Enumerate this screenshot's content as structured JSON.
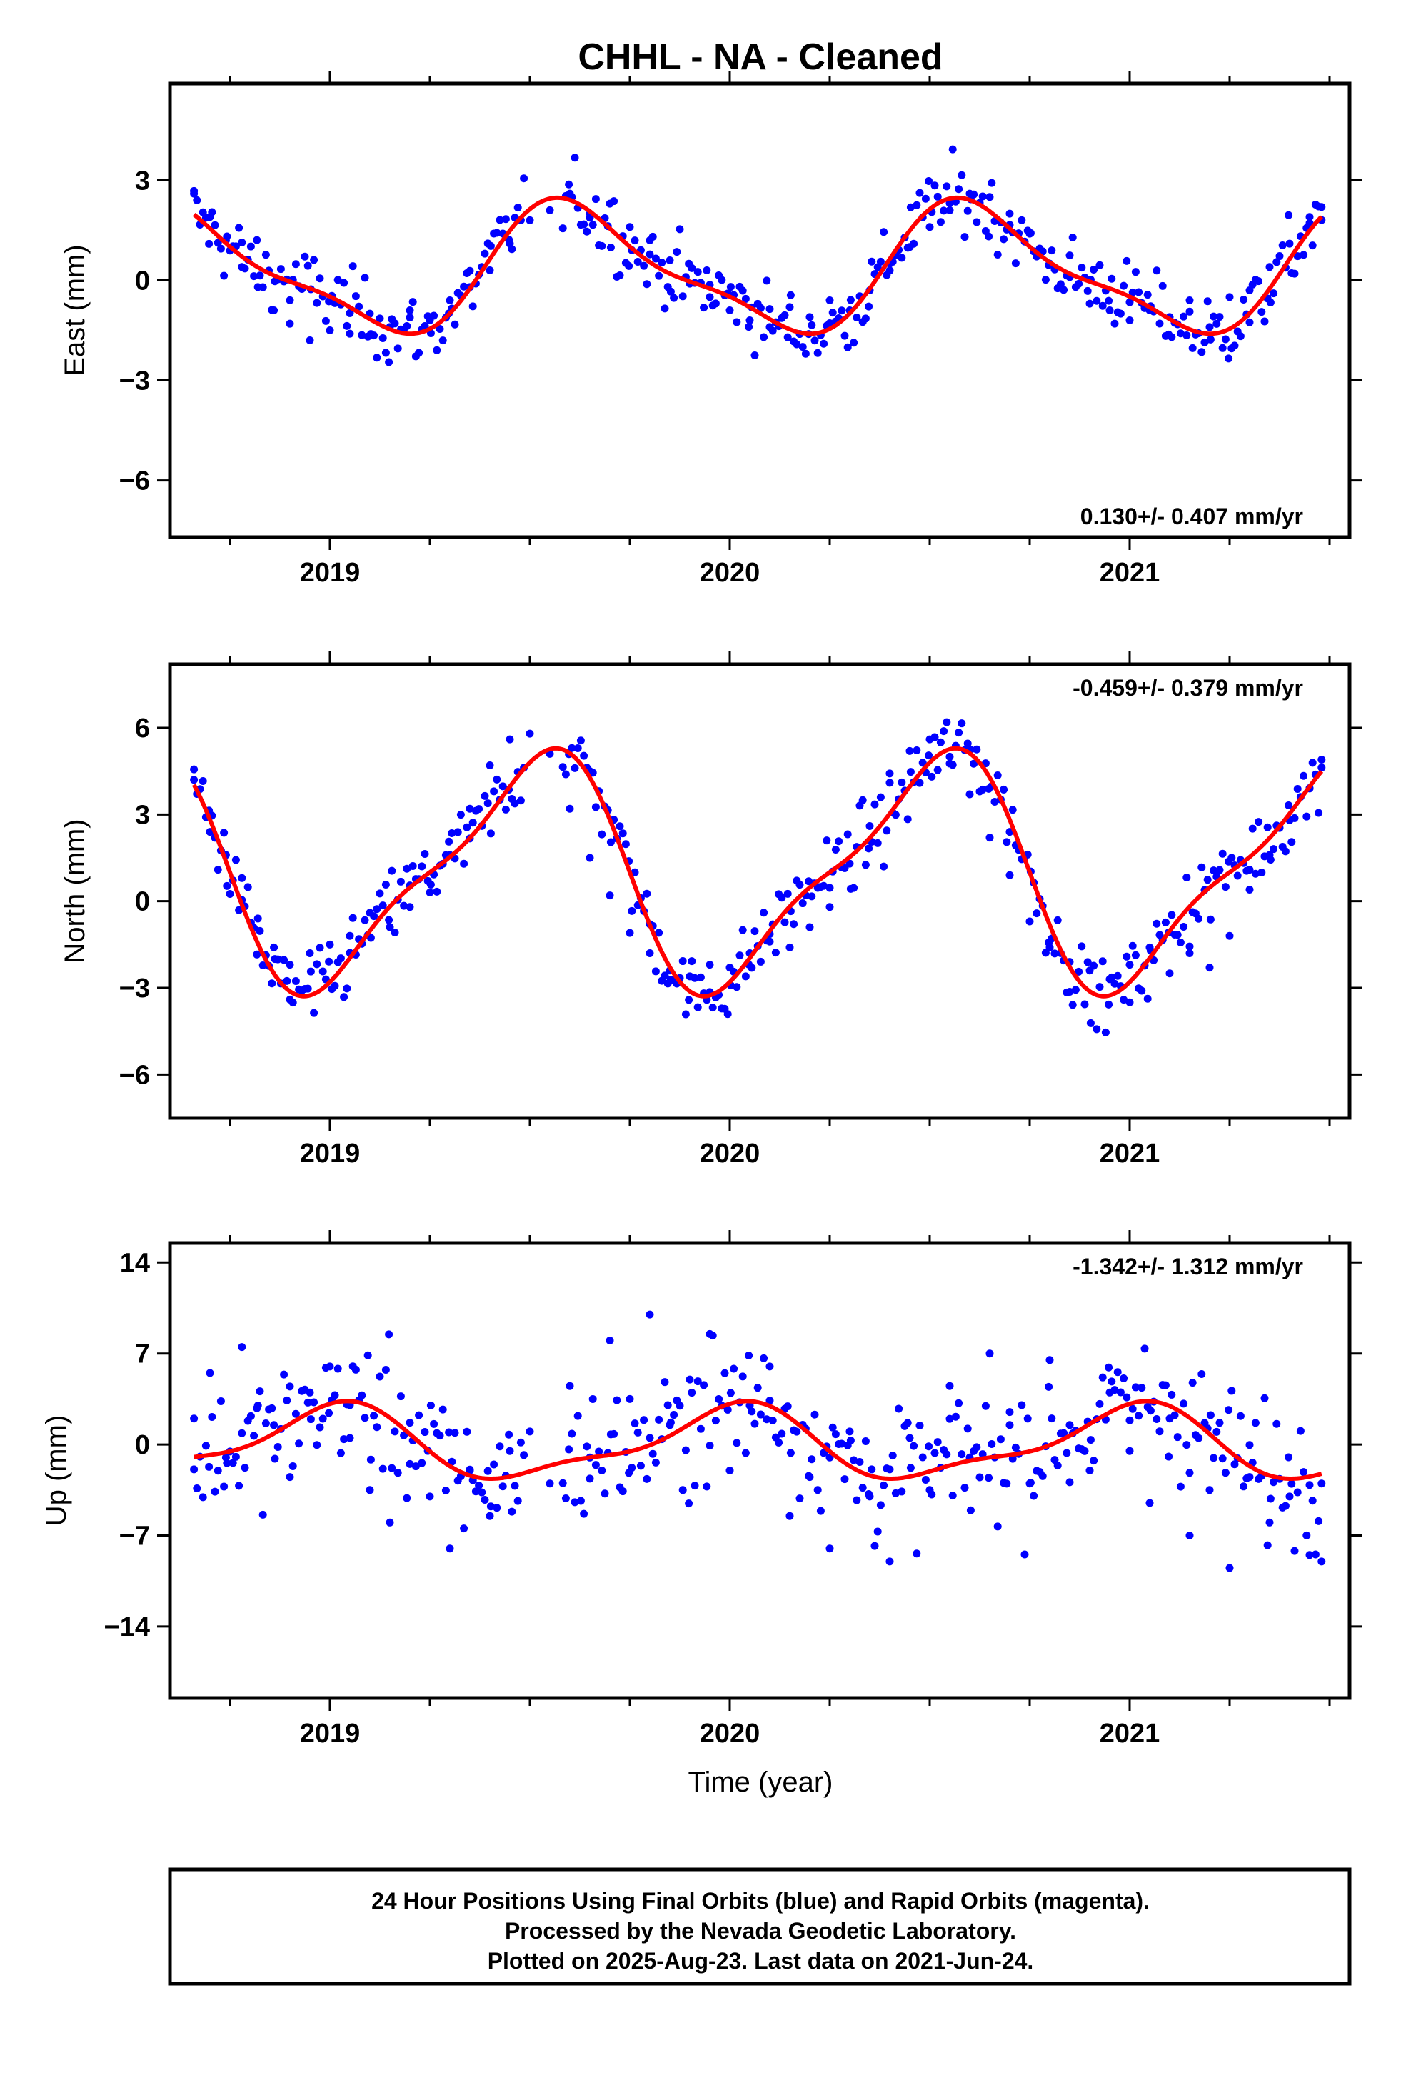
{
  "title": "CHHL  - NA - Cleaned",
  "xlabel": "Time (year)",
  "footer": [
    "24 Hour Positions Using Final Orbits (blue) and Rapid Orbits (magenta).",
    "Processed by the Nevada Geodetic Laboratory.",
    "Plotted on 2025-Aug-23. Last data on 2021-Jun-24."
  ],
  "colors": {
    "points": "#0000ff",
    "fit": "#ff0000",
    "axis": "#000000"
  },
  "chart_data": [
    {
      "type": "scatter",
      "panel": "east",
      "ylabel": "East (mm)",
      "rate_text": "0.130+/- 0.407 mm/yr",
      "rate_position": "bottom-right",
      "xlim": [
        2018.6,
        2021.55
      ],
      "ylim": [
        -7.7,
        5.9
      ],
      "xticks": [
        2019,
        2020,
        2021
      ],
      "xtick_labels": [
        "2019",
        "2020",
        "2021"
      ],
      "yticks": [
        3,
        0,
        -3,
        -6
      ],
      "ytick_labels": [
        "3",
        "0",
        "−3",
        "−6"
      ],
      "fit": {
        "mean": 0.3,
        "annual_amp": 1.8,
        "annual_phase": 2019.37,
        "semi_amp": 0.55,
        "semi_phase": 2018.9
      },
      "series": [
        {
          "style": "points",
          "x": [
            2018.66,
            2018.7,
            2018.74,
            2018.78,
            2018.82,
            2018.86,
            2018.9,
            2018.95,
            2019.0,
            2019.05,
            2019.1,
            2019.15,
            2019.2,
            2019.25,
            2019.3,
            2019.35,
            2019.4,
            2019.45,
            2019.5,
            2019.55,
            2019.6,
            2019.65,
            2019.7,
            2019.75,
            2019.8,
            2019.85,
            2019.9,
            2019.95,
            2020.0,
            2020.05,
            2020.1,
            2020.15,
            2020.2,
            2020.25,
            2020.3,
            2020.35,
            2020.4,
            2020.45,
            2020.5,
            2020.55,
            2020.6,
            2020.65,
            2020.7,
            2020.75,
            2020.8,
            2020.85,
            2020.9,
            2020.95,
            2021.0,
            2021.05,
            2021.1,
            2021.15,
            2021.2,
            2021.25,
            2021.3,
            2021.35,
            2021.4,
            2021.45,
            2021.48
          ],
          "y": [
            2.6,
            1.9,
            1.2,
            0.4,
            -0.2,
            -0.9,
            -1.3,
            -1.8,
            -1.5,
            -1.6,
            -1.0,
            -1.4,
            -0.9,
            -1.2,
            -0.6,
            -0.2,
            0.3,
            1.1,
            1.8,
            2.1,
            2.6,
            2.0,
            2.3,
            1.6,
            1.2,
            0.6,
            -0.1,
            -0.5,
            -0.9,
            -1.2,
            -1.4,
            -0.8,
            -1.1,
            -0.6,
            -0.9,
            -0.3,
            0.5,
            1.0,
            1.6,
            2.1,
            2.6,
            2.5,
            2.0,
            1.4,
            0.5,
            0.1,
            -0.7,
            -0.9,
            -1.2,
            -0.9,
            -1.1,
            -0.6,
            -1.4,
            -0.5,
            -0.3,
            0.4,
            1.1,
            1.9,
            2.2
          ]
        },
        {
          "style": "fit",
          "name": "",
          "values": []
        }
      ]
    },
    {
      "type": "scatter",
      "panel": "north",
      "ylabel": "North (mm)",
      "rate_text": "-0.459+/- 0.379 mm/yr",
      "rate_position": "top-right",
      "xlim": [
        2018.6,
        2021.55
      ],
      "ylim": [
        -7.5,
        8.2
      ],
      "xticks": [
        2019,
        2020,
        2021
      ],
      "xtick_labels": [
        "2019",
        "2020",
        "2021"
      ],
      "yticks": [
        6,
        3,
        0,
        -3,
        -6
      ],
      "ytick_labels": [
        "6",
        "3",
        "0",
        "−3",
        "−6"
      ],
      "fit": {
        "mean": 1.0,
        "annual_amp": 3.8,
        "annual_phase": 2019.25,
        "semi_amp": 1.1,
        "semi_phase": 2019.0
      },
      "series": [
        {
          "style": "points",
          "x": [
            2018.66,
            2018.7,
            2018.74,
            2018.78,
            2018.82,
            2018.86,
            2018.9,
            2018.95,
            2019.0,
            2019.05,
            2019.1,
            2019.15,
            2019.2,
            2019.25,
            2019.3,
            2019.35,
            2019.4,
            2019.45,
            2019.5,
            2019.55,
            2019.6,
            2019.65,
            2019.7,
            2019.75,
            2019.8,
            2019.85,
            2019.9,
            2019.95,
            2020.0,
            2020.05,
            2020.1,
            2020.15,
            2020.2,
            2020.25,
            2020.3,
            2020.35,
            2020.4,
            2020.45,
            2020.5,
            2020.55,
            2020.6,
            2020.65,
            2020.7,
            2020.75,
            2020.8,
            2020.85,
            2020.9,
            2020.95,
            2021.0,
            2021.05,
            2021.1,
            2021.15,
            2021.2,
            2021.25,
            2021.3,
            2021.35,
            2021.4,
            2021.45,
            2021.48
          ],
          "y": [
            4.2,
            2.4,
            1.6,
            0.8,
            -0.6,
            -1.6,
            -2.2,
            -1.8,
            -1.5,
            -1.2,
            -0.4,
            -0.9,
            -0.2,
            0.3,
            1.6,
            3.2,
            4.7,
            5.6,
            5.8,
            5.1,
            3.2,
            1.5,
            0.2,
            -1.1,
            -1.8,
            -2.4,
            -2.6,
            -2.2,
            -2.3,
            -1.8,
            -1.4,
            -1.6,
            -0.9,
            -0.2,
            1.3,
            2.6,
            4.1,
            5.2,
            5.6,
            5.0,
            3.7,
            2.2,
            0.9,
            -0.7,
            -1.6,
            -2.1,
            -2.4,
            -2.7,
            -2.2,
            -1.6,
            -2.5,
            -1.8,
            -2.3,
            -1.2,
            0.4,
            1.6,
            2.8,
            3.9,
            4.9
          ]
        },
        {
          "style": "fit",
          "name": "",
          "values": []
        }
      ]
    },
    {
      "type": "scatter",
      "panel": "up",
      "ylabel": "Up (mm)",
      "rate_text": "-1.342+/- 1.312 mm/yr",
      "rate_position": "top-right",
      "xlim": [
        2018.6,
        2021.55
      ],
      "ylim": [
        -19.5,
        15.5
      ],
      "xticks": [
        2019,
        2020,
        2021
      ],
      "xtick_labels": [
        "2019",
        "2020",
        "2021"
      ],
      "yticks": [
        14,
        7,
        0,
        -7,
        -14
      ],
      "ytick_labels": [
        "14",
        "7",
        "0",
        "−7",
        "−14"
      ],
      "fit": {
        "mean": 0.0,
        "annual_amp": 2.6,
        "annual_phase": 2018.75,
        "semi_amp": 0.9,
        "semi_phase": 2018.95
      },
      "series": [
        {
          "style": "points",
          "x": [
            2018.66,
            2018.7,
            2018.74,
            2018.78,
            2018.82,
            2018.86,
            2018.9,
            2018.95,
            2019.0,
            2019.05,
            2019.1,
            2019.15,
            2019.2,
            2019.25,
            2019.3,
            2019.35,
            2019.4,
            2019.45,
            2019.5,
            2019.55,
            2019.6,
            2019.65,
            2019.7,
            2019.75,
            2019.8,
            2019.85,
            2019.9,
            2019.95,
            2020.0,
            2020.05,
            2020.1,
            2020.15,
            2020.2,
            2020.25,
            2020.3,
            2020.35,
            2020.4,
            2020.45,
            2020.5,
            2020.55,
            2020.6,
            2020.65,
            2020.7,
            2020.75,
            2020.8,
            2020.85,
            2020.9,
            2020.95,
            2021.0,
            2021.05,
            2021.1,
            2021.15,
            2021.2,
            2021.25,
            2021.3,
            2021.35,
            2021.4,
            2021.45,
            2021.48
          ],
          "y": [
            2.0,
            5.5,
            -1.0,
            7.5,
            3.0,
            1.5,
            -2.5,
            4.0,
            6.0,
            0.5,
            -3.5,
            -6.0,
            -1.5,
            -4.0,
            -8.0,
            -2.0,
            -5.5,
            -0.5,
            1.0,
            -3.0,
            4.5,
            -1.0,
            8.0,
            3.5,
            10.0,
            1.5,
            5.0,
            8.5,
            -2.0,
            3.0,
            6.0,
            -5.5,
            -2.5,
            -8.0,
            1.0,
            -4.0,
            -9.0,
            0.5,
            -3.5,
            4.5,
            -1.0,
            7.0,
            2.5,
            -3.0,
            6.5,
            1.5,
            -2.0,
            4.0,
            -0.5,
            -4.5,
            2.0,
            -7.0,
            -3.5,
            -9.5,
            -2.5,
            -6.0,
            -4.0,
            -8.5,
            -3.0
          ]
        },
        {
          "style": "fit",
          "name": "",
          "values": []
        }
      ]
    }
  ]
}
